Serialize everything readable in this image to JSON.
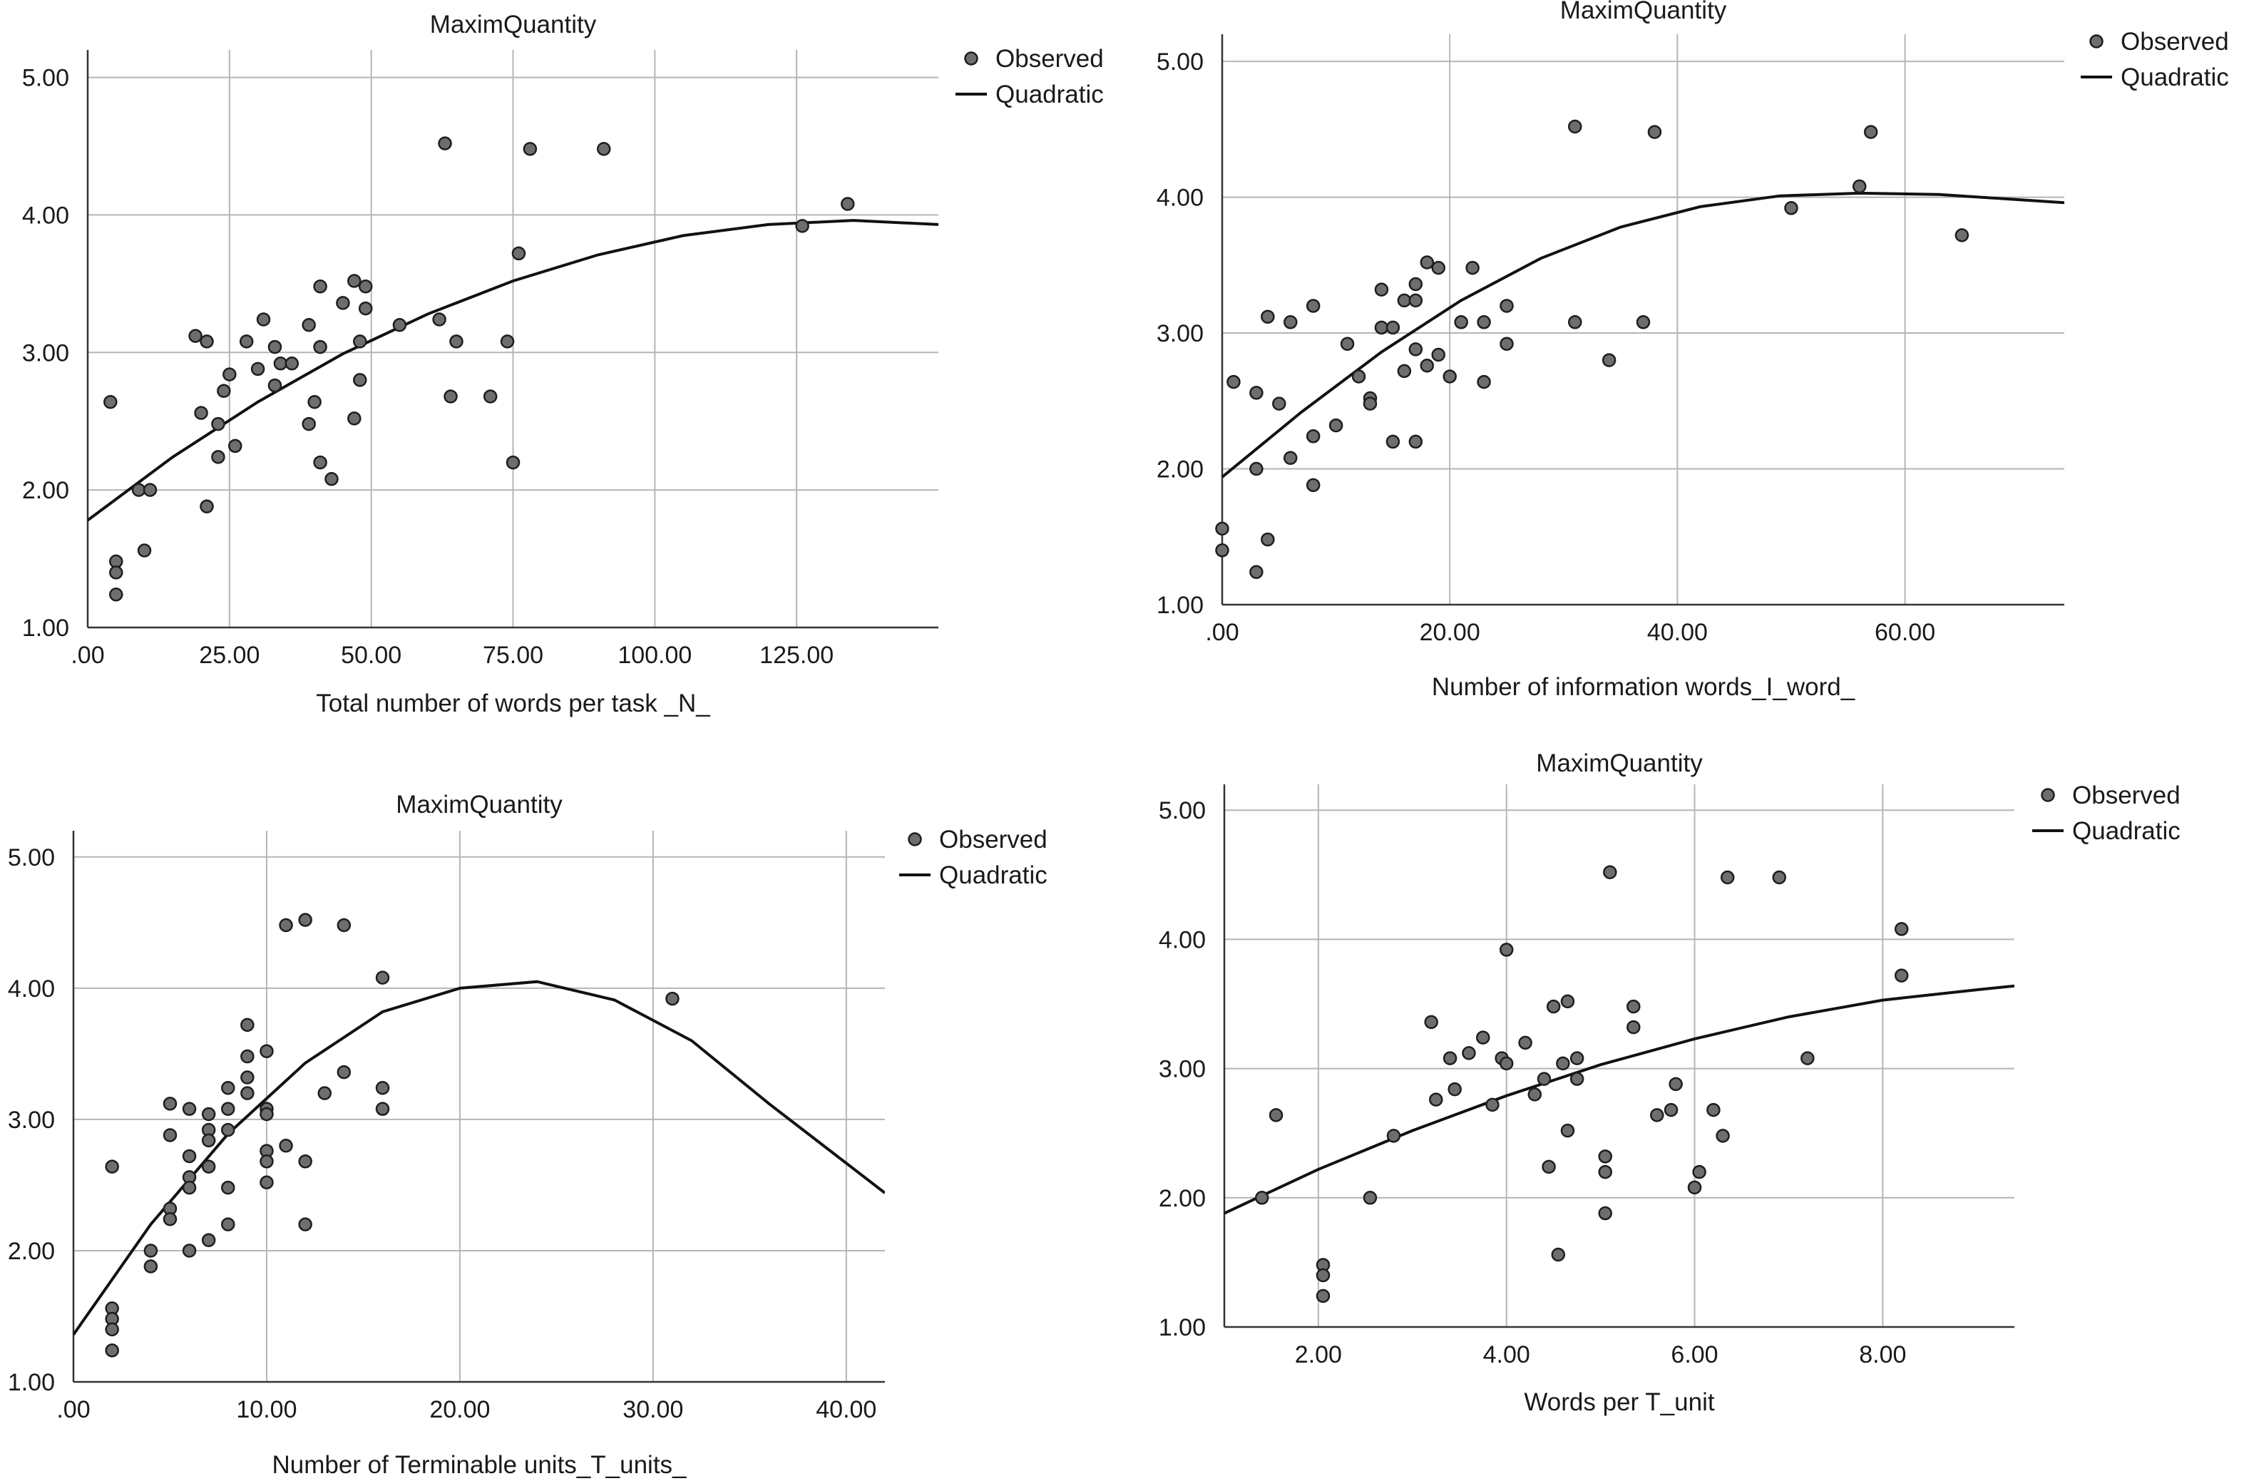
{
  "chart_data": [
    {
      "type": "scatter",
      "title": "MaximQuantity",
      "xlabel": "Total number of words per task _N_",
      "ylabel": "",
      "xlim": [
        0,
        150
      ],
      "ylim": [
        1,
        5.2
      ],
      "xticks": [
        0,
        25,
        50,
        75,
        100,
        125
      ],
      "xtick_labels": [
        ".00",
        "25.00",
        "50.00",
        "75.00",
        "100.00",
        "125.00"
      ],
      "yticks": [
        1,
        2,
        3,
        4,
        5
      ],
      "ytick_labels": [
        "1.00",
        "2.00",
        "3.00",
        "4.00",
        "5.00"
      ],
      "legend": [
        "Observed",
        "Quadratic"
      ],
      "legend_position": "top-right",
      "grid": true,
      "series": [
        {
          "name": "Observed",
          "type": "scatter",
          "points": [
            [
              4,
              2.64
            ],
            [
              5,
              1.48
            ],
            [
              5,
              1.4
            ],
            [
              5,
              1.24
            ],
            [
              9,
              2
            ],
            [
              10,
              1.56
            ],
            [
              11,
              2
            ],
            [
              19,
              3.12
            ],
            [
              20,
              2.56
            ],
            [
              21,
              1.88
            ],
            [
              21,
              3.08
            ],
            [
              23,
              2.48
            ],
            [
              23,
              2.24
            ],
            [
              24,
              2.72
            ],
            [
              25,
              2.84
            ],
            [
              26,
              2.32
            ],
            [
              28,
              3.08
            ],
            [
              30,
              2.88
            ],
            [
              31,
              3.24
            ],
            [
              33,
              3.04
            ],
            [
              33,
              2.76
            ],
            [
              34,
              2.92
            ],
            [
              36,
              2.92
            ],
            [
              39,
              3.2
            ],
            [
              39,
              2.48
            ],
            [
              40,
              2.64
            ],
            [
              41,
              3.48
            ],
            [
              41,
              3.04
            ],
            [
              41,
              2.2
            ],
            [
              43,
              2.08
            ],
            [
              45,
              3.36
            ],
            [
              47,
              3.52
            ],
            [
              47,
              2.52
            ],
            [
              48,
              3.08
            ],
            [
              48,
              2.8
            ],
            [
              49,
              3.48
            ],
            [
              49,
              3.32
            ],
            [
              55,
              3.2
            ],
            [
              62,
              3.24
            ],
            [
              63,
              4.52
            ],
            [
              64,
              2.68
            ],
            [
              65,
              3.08
            ],
            [
              71,
              2.68
            ],
            [
              74,
              3.08
            ],
            [
              75,
              2.2
            ],
            [
              76,
              3.72
            ],
            [
              78,
              4.48
            ],
            [
              91,
              4.48
            ],
            [
              126,
              3.92
            ],
            [
              134,
              4.08
            ]
          ]
        },
        {
          "name": "Quadratic",
          "type": "line",
          "x": [
            0,
            15,
            30,
            45,
            60,
            75,
            90,
            105,
            120,
            135,
            150
          ],
          "y": [
            1.78,
            2.24,
            2.64,
            2.99,
            3.28,
            3.52,
            3.71,
            3.85,
            3.93,
            3.96,
            3.93
          ]
        }
      ]
    },
    {
      "type": "scatter",
      "title": "MaximQuantity",
      "xlabel": "Number of information words_I_word_",
      "ylabel": "",
      "xlim": [
        0,
        74
      ],
      "ylim": [
        1,
        5.2
      ],
      "xticks": [
        0,
        20,
        40,
        60
      ],
      "xtick_labels": [
        ".00",
        "20.00",
        "40.00",
        "60.00"
      ],
      "yticks": [
        1,
        2,
        3,
        4,
        5
      ],
      "ytick_labels": [
        "1.00",
        "2.00",
        "3.00",
        "4.00",
        "5.00"
      ],
      "legend": [
        "Observed",
        "Quadratic"
      ],
      "legend_position": "top-right",
      "grid": true,
      "series": [
        {
          "name": "Observed",
          "type": "scatter",
          "points": [
            [
              0,
              1.56
            ],
            [
              0,
              1.4
            ],
            [
              1,
              2.64
            ],
            [
              3,
              2.56
            ],
            [
              3,
              2
            ],
            [
              3,
              1.24
            ],
            [
              4,
              3.12
            ],
            [
              4,
              1.48
            ],
            [
              5,
              2.48
            ],
            [
              6,
              3.08
            ],
            [
              6,
              2.08
            ],
            [
              8,
              3.2
            ],
            [
              8,
              2.24
            ],
            [
              8,
              1.88
            ],
            [
              10,
              2.32
            ],
            [
              11,
              2.92
            ],
            [
              12,
              2.68
            ],
            [
              13,
              2.52
            ],
            [
              13,
              2.48
            ],
            [
              14,
              3.32
            ],
            [
              14,
              3.04
            ],
            [
              15,
              3.04
            ],
            [
              15,
              2.2
            ],
            [
              16,
              3.24
            ],
            [
              16,
              2.72
            ],
            [
              17,
              3.36
            ],
            [
              17,
              3.24
            ],
            [
              17,
              2.88
            ],
            [
              17,
              2.2
            ],
            [
              18,
              3.52
            ],
            [
              18,
              2.76
            ],
            [
              19,
              3.48
            ],
            [
              19,
              2.84
            ],
            [
              20,
              2.68
            ],
            [
              21,
              3.08
            ],
            [
              22,
              3.48
            ],
            [
              23,
              3.08
            ],
            [
              23,
              2.64
            ],
            [
              25,
              3.2
            ],
            [
              25,
              2.92
            ],
            [
              31,
              4.52
            ],
            [
              31,
              3.08
            ],
            [
              34,
              2.8
            ],
            [
              37,
              3.08
            ],
            [
              38,
              4.48
            ],
            [
              50,
              3.92
            ],
            [
              56,
              4.08
            ],
            [
              57,
              4.48
            ],
            [
              65,
              3.72
            ]
          ]
        },
        {
          "name": "Quadratic",
          "type": "line",
          "x": [
            0,
            7,
            14,
            21,
            28,
            35,
            42,
            49,
            56,
            63,
            74
          ],
          "y": [
            1.94,
            2.42,
            2.86,
            3.24,
            3.55,
            3.78,
            3.93,
            4.01,
            4.03,
            4.02,
            3.96
          ]
        }
      ]
    },
    {
      "type": "scatter",
      "title": "MaximQuantity",
      "xlabel": "Number of Terminable units_T_units_",
      "ylabel": "",
      "xlim": [
        0,
        42
      ],
      "ylim": [
        1,
        5.2
      ],
      "xticks": [
        0,
        10,
        20,
        30,
        40
      ],
      "xtick_labels": [
        ".00",
        "10.00",
        "20.00",
        "30.00",
        "40.00"
      ],
      "yticks": [
        1,
        2,
        3,
        4,
        5
      ],
      "ytick_labels": [
        "1.00",
        "2.00",
        "3.00",
        "4.00",
        "5.00"
      ],
      "legend": [
        "Observed",
        "Quadratic"
      ],
      "legend_position": "top-right",
      "grid": true,
      "series": [
        {
          "name": "Observed",
          "type": "scatter",
          "points": [
            [
              2,
              2.64
            ],
            [
              2,
              1.56
            ],
            [
              2,
              1.48
            ],
            [
              2,
              1.4
            ],
            [
              2,
              1.24
            ],
            [
              4,
              2
            ],
            [
              4,
              1.88
            ],
            [
              5,
              3.12
            ],
            [
              5,
              2.88
            ],
            [
              5,
              2.32
            ],
            [
              5,
              2.24
            ],
            [
              6,
              3.08
            ],
            [
              6,
              2.72
            ],
            [
              6,
              2.56
            ],
            [
              6,
              2.48
            ],
            [
              6,
              2
            ],
            [
              7,
              3.04
            ],
            [
              7,
              2.92
            ],
            [
              7,
              2.84
            ],
            [
              7,
              2.64
            ],
            [
              7,
              2.08
            ],
            [
              8,
              3.24
            ],
            [
              8,
              3.08
            ],
            [
              8,
              2.92
            ],
            [
              8,
              2.48
            ],
            [
              8,
              2.2
            ],
            [
              9,
              3.72
            ],
            [
              9,
              3.48
            ],
            [
              9,
              3.32
            ],
            [
              9,
              3.2
            ],
            [
              10,
              3.52
            ],
            [
              10,
              3.08
            ],
            [
              10,
              3.04
            ],
            [
              10,
              2.76
            ],
            [
              10,
              2.68
            ],
            [
              10,
              2.52
            ],
            [
              11,
              4.48
            ],
            [
              11,
              2.8
            ],
            [
              12,
              4.52
            ],
            [
              12,
              2.68
            ],
            [
              12,
              2.2
            ],
            [
              13,
              3.2
            ],
            [
              14,
              4.48
            ],
            [
              14,
              3.36
            ],
            [
              16,
              4.08
            ],
            [
              16,
              3.24
            ],
            [
              16,
              3.08
            ],
            [
              31,
              3.92
            ]
          ]
        },
        {
          "name": "Quadratic",
          "type": "line",
          "x": [
            0,
            4,
            8,
            12,
            16,
            20,
            24,
            28,
            32,
            36,
            42
          ],
          "y": [
            1.36,
            2.2,
            2.89,
            3.43,
            3.82,
            4.0,
            4.05,
            3.91,
            3.6,
            3.12,
            2.44
          ]
        }
      ]
    },
    {
      "type": "scatter",
      "title": "MaximQuantity",
      "xlabel": "Words per T_unit",
      "ylabel": "",
      "xlim": [
        1,
        9.4
      ],
      "ylim": [
        1,
        5.2
      ],
      "xticks": [
        2,
        4,
        6,
        8
      ],
      "xtick_labels": [
        "2.00",
        "4.00",
        "6.00",
        "8.00"
      ],
      "yticks": [
        1,
        2,
        3,
        4,
        5
      ],
      "ytick_labels": [
        "1.00",
        "2.00",
        "3.00",
        "4.00",
        "5.00"
      ],
      "legend": [
        "Observed",
        "Quadratic"
      ],
      "legend_position": "top-right",
      "grid": true,
      "series": [
        {
          "name": "Observed",
          "type": "scatter",
          "points": [
            [
              1.4,
              2
            ],
            [
              1.55,
              2.64
            ],
            [
              2.05,
              1.48
            ],
            [
              2.05,
              1.4
            ],
            [
              2.05,
              1.24
            ],
            [
              2.55,
              2
            ],
            [
              2.8,
              2.48
            ],
            [
              3.2,
              3.36
            ],
            [
              3.25,
              2.76
            ],
            [
              3.4,
              3.08
            ],
            [
              3.45,
              2.84
            ],
            [
              3.6,
              3.12
            ],
            [
              3.75,
              3.24
            ],
            [
              3.85,
              2.72
            ],
            [
              3.95,
              3.08
            ],
            [
              4.0,
              3.92
            ],
            [
              4.0,
              3.04
            ],
            [
              4.2,
              3.2
            ],
            [
              4.3,
              2.8
            ],
            [
              4.4,
              2.92
            ],
            [
              4.45,
              2.24
            ],
            [
              4.5,
              3.48
            ],
            [
              4.55,
              1.56
            ],
            [
              4.6,
              3.04
            ],
            [
              4.65,
              3.52
            ],
            [
              4.65,
              2.52
            ],
            [
              4.75,
              3.08
            ],
            [
              4.75,
              2.92
            ],
            [
              5.05,
              2.32
            ],
            [
              5.05,
              2.2
            ],
            [
              5.05,
              1.88
            ],
            [
              5.1,
              4.52
            ],
            [
              5.35,
              3.48
            ],
            [
              5.35,
              3.32
            ],
            [
              5.6,
              2.64
            ],
            [
              5.75,
              2.68
            ],
            [
              5.8,
              2.88
            ],
            [
              6.0,
              2.08
            ],
            [
              6.05,
              2.2
            ],
            [
              6.2,
              2.68
            ],
            [
              6.3,
              2.48
            ],
            [
              6.35,
              4.48
            ],
            [
              6.9,
              4.48
            ],
            [
              7.2,
              3.08
            ],
            [
              8.2,
              4.08
            ],
            [
              8.2,
              3.72
            ]
          ]
        },
        {
          "name": "Quadratic",
          "type": "line",
          "x": [
            1,
            2,
            3,
            4,
            5,
            6,
            7,
            8,
            9,
            9.4
          ],
          "y": [
            1.88,
            2.22,
            2.52,
            2.79,
            3.03,
            3.23,
            3.4,
            3.53,
            3.61,
            3.64
          ]
        }
      ]
    }
  ]
}
